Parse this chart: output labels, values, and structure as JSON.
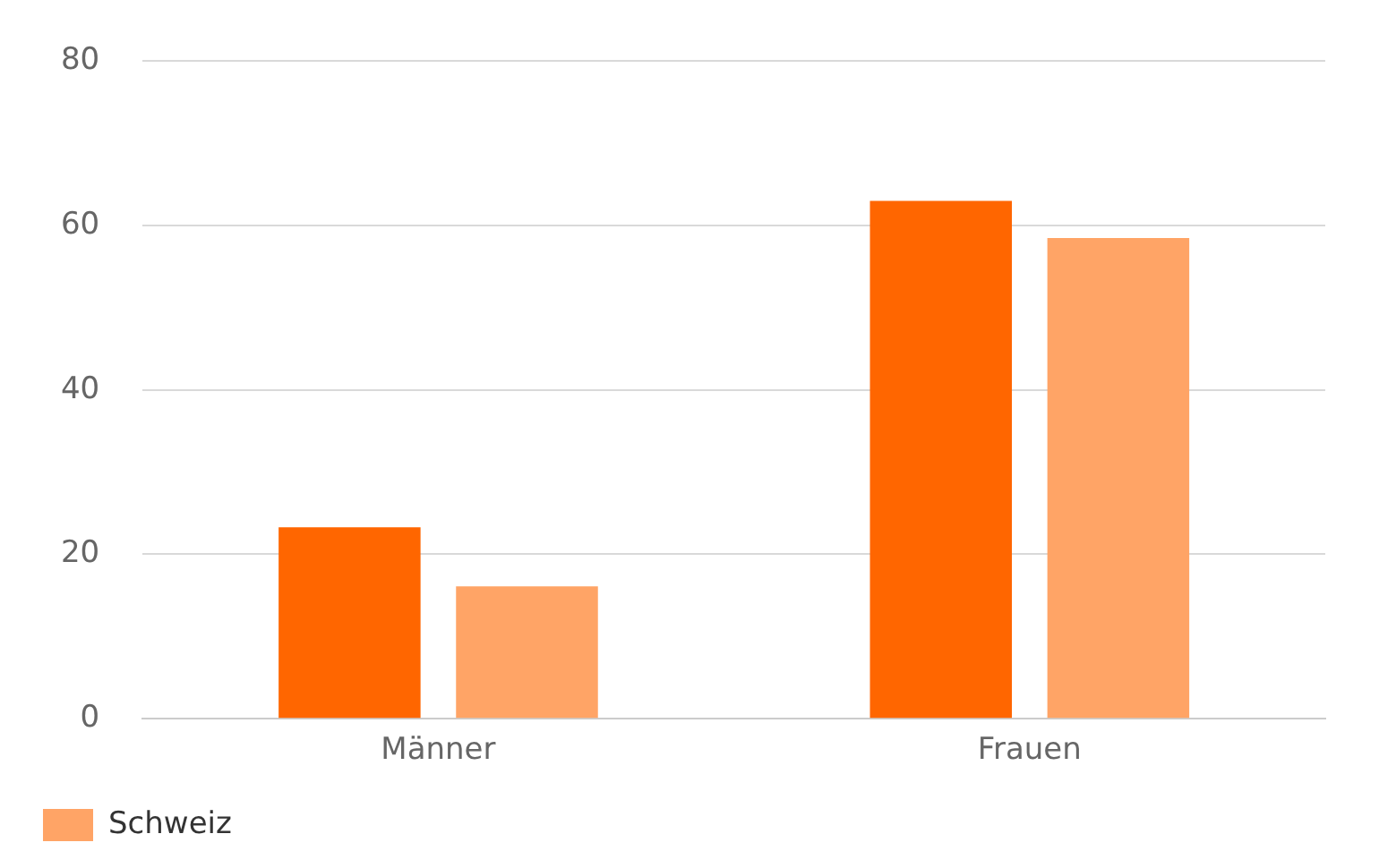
{
  "chart_data": {
    "type": "bar",
    "categories": [
      "Männer",
      "Frauen"
    ],
    "series": [
      {
        "color": "#ff6600",
        "values": [
          23.3,
          63.0
        ]
      },
      {
        "name": "Schweiz",
        "color": "#ffa466",
        "values": [
          16.1,
          58.5
        ]
      }
    ],
    "ylim": [
      0,
      80
    ],
    "yticks": [
      0,
      20,
      40,
      60,
      80
    ],
    "grid": "y",
    "legend": "bottom left"
  }
}
